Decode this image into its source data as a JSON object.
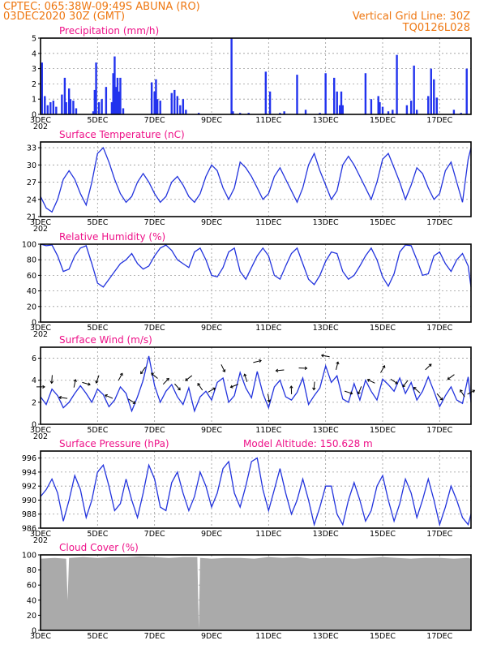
{
  "header": {
    "line1": "CPTEC:   065:38W-09:49S   ABUNA (RO)",
    "line2": "03DEC2020 30Z (GMT)",
    "vgrid": "Vertical Grid Line: 30Z",
    "code": "TQ0126L028"
  },
  "colors": {
    "series": "#2233dd",
    "bars": "#2233ee",
    "cloud": "#aaaaaa",
    "title": "#ee1188",
    "header": "#ee7711"
  },
  "x_axis_labels": [
    "3DEC",
    "5DEC",
    "7DEC",
    "9DEC",
    "11DEC",
    "13DEC",
    "15DEC",
    "17DEC"
  ],
  "x_axis_sub": "202",
  "panels": {
    "precip": {
      "title": "Precipitation (mm/h)",
      "y_ticks": [
        "0",
        "1",
        "2",
        "3",
        "4",
        "5"
      ]
    },
    "temp": {
      "title": "Surface Temperature (nC)",
      "y_ticks": [
        "21",
        "24",
        "27",
        "30",
        "33"
      ]
    },
    "rh": {
      "title": "Relative Humidity (%)",
      "y_ticks": [
        "0",
        "20",
        "40",
        "60",
        "80",
        "100"
      ]
    },
    "wind": {
      "title": "Surface Wind (m/s)",
      "y_ticks": [
        "0",
        "2",
        "4",
        "6"
      ]
    },
    "pressure": {
      "title": "Surface Pressure (hPa)",
      "extra": "Model Altitude: 150.628 m",
      "y_ticks": [
        "986",
        "988",
        "990",
        "992",
        "994",
        "996"
      ]
    },
    "cloud": {
      "title": "Cloud Cover (%)",
      "y_ticks": [
        "0",
        "20",
        "40",
        "60",
        "80",
        "100"
      ]
    }
  },
  "chart_data": [
    {
      "type": "bar",
      "title": "Precipitation (mm/h)",
      "xlabel": "",
      "ylabel": "",
      "ylim": [
        0,
        5
      ],
      "x_range_days": [
        3,
        18.1
      ],
      "grid": true,
      "x_days": [
        3.05,
        3.15,
        3.25,
        3.35,
        3.45,
        3.55,
        3.75,
        3.85,
        3.9,
        4.0,
        4.05,
        4.15,
        4.25,
        4.85,
        4.9,
        4.95,
        5.05,
        5.15,
        5.3,
        5.5,
        5.55,
        5.6,
        5.65,
        5.7,
        5.75,
        5.8,
        5.9,
        6.9,
        7.0,
        7.05,
        7.1,
        7.2,
        7.6,
        7.7,
        7.8,
        7.9,
        8.0,
        8.1,
        8.55,
        9.7,
        9.75,
        10.0,
        10.3,
        10.9,
        11.05,
        11.4,
        11.55,
        12.0,
        12.3,
        12.8,
        13.0,
        13.3,
        13.4,
        13.5,
        13.55,
        13.6,
        14.4,
        14.6,
        14.85,
        14.9,
        15.0,
        15.2,
        15.35,
        15.5,
        15.85,
        16.0,
        16.1,
        16.2,
        16.6,
        16.7,
        16.8,
        16.9,
        17.5,
        17.75,
        17.95
      ],
      "values": [
        3.4,
        1.2,
        0.6,
        0.8,
        0.9,
        0.5,
        1.3,
        2.4,
        0.8,
        1.7,
        1.0,
        0.9,
        0.4,
        0.2,
        1.6,
        3.4,
        0.8,
        1.0,
        1.8,
        0.8,
        2.7,
        3.8,
        1.8,
        2.4,
        1.5,
        2.4,
        0.4,
        2.1,
        1.5,
        2.3,
        1.0,
        0.9,
        1.4,
        1.6,
        1.2,
        0.6,
        1.0,
        0.3,
        0.1,
        5.0,
        0.2,
        0.1,
        0.1,
        2.8,
        1.5,
        0.1,
        0.2,
        2.6,
        0.3,
        0.1,
        2.7,
        2.4,
        1.5,
        0.6,
        1.5,
        0.6,
        2.7,
        1.0,
        1.2,
        0.8,
        0.5,
        0.2,
        0.3,
        3.9,
        0.6,
        0.9,
        3.2,
        0.3,
        1.2,
        3.0,
        2.3,
        1.1,
        0.3,
        0.1,
        3.0
      ]
    },
    {
      "type": "line",
      "title": "Surface Temperature (nC)",
      "xlabel": "",
      "ylabel": "",
      "ylim": [
        21,
        34
      ],
      "x_range_days": [
        3,
        18.1
      ],
      "grid": true,
      "x_days": [
        3.0,
        3.2,
        3.4,
        3.6,
        3.8,
        4.0,
        4.2,
        4.4,
        4.6,
        4.8,
        5.0,
        5.2,
        5.4,
        5.6,
        5.8,
        6.0,
        6.2,
        6.4,
        6.6,
        6.8,
        7.0,
        7.2,
        7.4,
        7.6,
        7.8,
        8.0,
        8.2,
        8.4,
        8.6,
        8.8,
        9.0,
        9.2,
        9.4,
        9.6,
        9.8,
        10.0,
        10.2,
        10.4,
        10.6,
        10.8,
        11.0,
        11.2,
        11.4,
        11.6,
        11.8,
        12.0,
        12.2,
        12.4,
        12.6,
        12.8,
        13.0,
        13.2,
        13.4,
        13.6,
        13.8,
        14.0,
        14.2,
        14.4,
        14.6,
        14.8,
        15.0,
        15.2,
        15.4,
        15.6,
        15.8,
        16.0,
        16.2,
        16.4,
        16.6,
        16.8,
        17.0,
        17.2,
        17.4,
        17.6,
        17.8,
        18.0,
        18.1
      ],
      "values": [
        24.5,
        22.5,
        21.8,
        24.0,
        27.5,
        29.0,
        27.5,
        25.0,
        23.0,
        27.0,
        32.0,
        33.0,
        30.5,
        27.5,
        25.0,
        23.5,
        24.5,
        27.0,
        28.5,
        27.0,
        25.0,
        23.5,
        24.5,
        27.0,
        28.0,
        26.5,
        24.5,
        23.5,
        25.0,
        28.0,
        30.0,
        29.0,
        26.0,
        24.0,
        26.0,
        30.5,
        29.5,
        28.0,
        26.0,
        24.0,
        25.0,
        28.0,
        29.5,
        27.5,
        25.5,
        23.5,
        26.0,
        30.0,
        32.0,
        29.0,
        26.5,
        24.0,
        25.5,
        30.0,
        31.5,
        30.0,
        28.0,
        26.0,
        24.0,
        27.0,
        31.0,
        32.0,
        29.5,
        27.0,
        24.0,
        26.5,
        29.5,
        28.5,
        26.0,
        24.0,
        25.0,
        29.0,
        30.5,
        27.0,
        23.5,
        31.0,
        33.0
      ]
    },
    {
      "type": "line",
      "title": "Relative Humidity (%)",
      "xlabel": "",
      "ylabel": "",
      "ylim": [
        0,
        100
      ],
      "x_range_days": [
        3,
        18.1
      ],
      "grid": true,
      "x_days": [
        3.0,
        3.2,
        3.4,
        3.6,
        3.8,
        4.0,
        4.2,
        4.4,
        4.6,
        4.8,
        5.0,
        5.2,
        5.4,
        5.6,
        5.8,
        6.0,
        6.2,
        6.4,
        6.6,
        6.8,
        7.0,
        7.2,
        7.4,
        7.6,
        7.8,
        8.0,
        8.2,
        8.4,
        8.6,
        8.8,
        9.0,
        9.2,
        9.4,
        9.6,
        9.8,
        10.0,
        10.2,
        10.4,
        10.6,
        10.8,
        11.0,
        11.2,
        11.4,
        11.6,
        11.8,
        12.0,
        12.2,
        12.4,
        12.6,
        12.8,
        13.0,
        13.2,
        13.4,
        13.6,
        13.8,
        14.0,
        14.2,
        14.4,
        14.6,
        14.8,
        15.0,
        15.2,
        15.4,
        15.6,
        15.8,
        16.0,
        16.2,
        16.4,
        16.6,
        16.8,
        17.0,
        17.2,
        17.4,
        17.6,
        17.8,
        18.0,
        18.1
      ],
      "values": [
        100,
        98,
        99,
        85,
        65,
        68,
        85,
        95,
        98,
        75,
        50,
        45,
        55,
        65,
        75,
        80,
        88,
        75,
        68,
        72,
        85,
        95,
        99,
        92,
        80,
        75,
        70,
        90,
        95,
        80,
        60,
        58,
        70,
        90,
        95,
        65,
        55,
        70,
        85,
        95,
        85,
        60,
        55,
        72,
        88,
        95,
        75,
        55,
        48,
        60,
        78,
        90,
        88,
        65,
        55,
        60,
        72,
        85,
        95,
        80,
        58,
        46,
        62,
        90,
        99,
        98,
        80,
        60,
        62,
        85,
        90,
        75,
        65,
        80,
        88,
        72,
        45
      ]
    },
    {
      "type": "line",
      "title": "Surface Wind (m/s)",
      "xlabel": "",
      "ylabel": "",
      "ylim": [
        0,
        7
      ],
      "x_range_days": [
        3,
        18.1
      ],
      "grid": true,
      "x_days": [
        3.0,
        3.2,
        3.4,
        3.6,
        3.8,
        4.0,
        4.2,
        4.4,
        4.6,
        4.8,
        5.0,
        5.2,
        5.4,
        5.6,
        5.8,
        6.0,
        6.2,
        6.4,
        6.6,
        6.8,
        7.0,
        7.2,
        7.4,
        7.6,
        7.8,
        8.0,
        8.2,
        8.4,
        8.6,
        8.8,
        9.0,
        9.2,
        9.4,
        9.6,
        9.8,
        10.0,
        10.2,
        10.4,
        10.6,
        10.8,
        11.0,
        11.2,
        11.4,
        11.6,
        11.8,
        12.0,
        12.2,
        12.4,
        12.6,
        12.8,
        13.0,
        13.2,
        13.4,
        13.6,
        13.8,
        14.0,
        14.2,
        14.4,
        14.6,
        14.8,
        15.0,
        15.2,
        15.4,
        15.6,
        15.8,
        16.0,
        16.2,
        16.4,
        16.6,
        16.8,
        17.0,
        17.2,
        17.4,
        17.6,
        17.8,
        18.0,
        18.1
      ],
      "values": [
        2.5,
        1.8,
        3.2,
        2.6,
        1.5,
        2.0,
        2.8,
        3.5,
        2.8,
        2.0,
        3.2,
        2.7,
        1.6,
        2.2,
        3.4,
        2.8,
        1.2,
        2.5,
        4.0,
        6.2,
        3.5,
        2.0,
        3.0,
        3.6,
        2.5,
        1.8,
        3.3,
        1.2,
        2.5,
        3.0,
        2.2,
        3.8,
        4.2,
        2.0,
        2.6,
        4.7,
        3.3,
        2.4,
        4.8,
        2.8,
        1.5,
        3.4,
        4.0,
        2.5,
        2.2,
        2.9,
        4.2,
        1.8,
        2.6,
        3.3,
        5.3,
        3.8,
        4.4,
        2.3,
        2.0,
        3.7,
        2.2,
        4.0,
        3.0,
        2.2,
        4.1,
        3.6,
        3.0,
        4.2,
        2.8,
        3.8,
        2.2,
        3.0,
        4.3,
        3.0,
        1.6,
        2.6,
        3.4,
        2.2,
        1.9,
        4.3,
        2.0
      ]
    },
    {
      "type": "line",
      "title": "Surface Pressure (hPa)",
      "xlabel": "",
      "ylabel": "",
      "ylim": [
        986,
        997
      ],
      "x_range_days": [
        3,
        18.1
      ],
      "grid": true,
      "x_days": [
        3.0,
        3.2,
        3.4,
        3.6,
        3.8,
        4.0,
        4.2,
        4.4,
        4.6,
        4.8,
        5.0,
        5.2,
        5.4,
        5.6,
        5.8,
        6.0,
        6.2,
        6.4,
        6.6,
        6.8,
        7.0,
        7.2,
        7.4,
        7.6,
        7.8,
        8.0,
        8.2,
        8.4,
        8.6,
        8.8,
        9.0,
        9.2,
        9.4,
        9.6,
        9.8,
        10.0,
        10.2,
        10.4,
        10.6,
        10.8,
        11.0,
        11.2,
        11.4,
        11.6,
        11.8,
        12.0,
        12.2,
        12.4,
        12.6,
        12.8,
        13.0,
        13.2,
        13.4,
        13.6,
        13.8,
        14.0,
        14.2,
        14.4,
        14.6,
        14.8,
        15.0,
        15.2,
        15.4,
        15.6,
        15.8,
        16.0,
        16.2,
        16.4,
        16.6,
        16.8,
        17.0,
        17.2,
        17.4,
        17.6,
        17.8,
        18.0,
        18.1
      ],
      "values": [
        990.5,
        991.5,
        993.0,
        991.0,
        987.0,
        990.0,
        993.5,
        991.5,
        987.5,
        990.0,
        994.0,
        995.0,
        992.0,
        988.5,
        989.5,
        993.0,
        990.0,
        987.5,
        991.0,
        995.0,
        993.0,
        989.0,
        988.5,
        992.5,
        994.0,
        991.0,
        988.5,
        990.5,
        994.0,
        992.0,
        989.0,
        991.0,
        994.5,
        995.5,
        991.0,
        989.0,
        992.0,
        995.5,
        996.0,
        991.5,
        988.5,
        991.5,
        994.5,
        991.0,
        988.0,
        990.0,
        993.0,
        990.0,
        986.5,
        989.0,
        992.0,
        992.0,
        988.0,
        986.5,
        990.0,
        992.5,
        990.0,
        987.0,
        988.5,
        992.0,
        993.5,
        990.0,
        987.0,
        989.5,
        993.0,
        991.0,
        987.5,
        990.0,
        993.0,
        990.0,
        986.5,
        989.0,
        992.0,
        990.0,
        987.5,
        986.5,
        988.0
      ]
    },
    {
      "type": "area",
      "title": "Cloud Cover (%)",
      "xlabel": "",
      "ylabel": "",
      "ylim": [
        0,
        100
      ],
      "x_range_days": [
        3,
        18.1
      ],
      "grid": true,
      "x_days": [
        3.0,
        3.5,
        3.9,
        3.95,
        4.0,
        4.5,
        5.0,
        5.5,
        6.0,
        6.5,
        7.0,
        7.5,
        8.0,
        8.5,
        8.55,
        8.6,
        9.0,
        9.5,
        10.0,
        10.5,
        11.0,
        11.5,
        12.0,
        12.5,
        13.0,
        13.5,
        14.0,
        14.5,
        15.0,
        15.5,
        16.0,
        16.5,
        17.0,
        17.5,
        18.0,
        18.1
      ],
      "values": [
        95,
        96,
        95,
        40,
        96,
        97,
        96,
        97,
        97,
        98,
        97,
        96,
        97,
        97,
        2,
        96,
        95,
        96,
        96,
        95,
        97,
        96,
        97,
        95,
        96,
        96,
        95,
        96,
        97,
        96,
        95,
        96,
        96,
        95,
        96,
        95
      ]
    }
  ]
}
